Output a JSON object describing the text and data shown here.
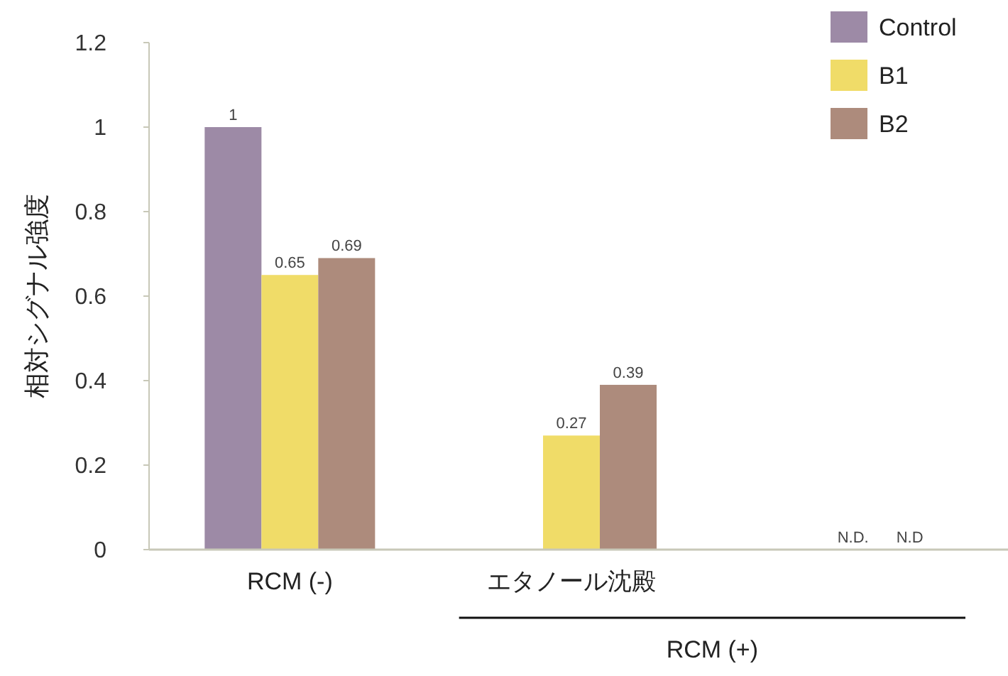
{
  "chart_data": {
    "type": "bar",
    "ylabel": "相対シグナル強度",
    "categories": [
      "RCM (-)",
      "エタノール沈殿",
      null
    ],
    "series": [
      {
        "name": "Control",
        "color": "#9d8aa6",
        "values": [
          1,
          null,
          null
        ],
        "value_labels": [
          "1",
          null,
          null
        ]
      },
      {
        "name": "B1",
        "color": "#f0dc68",
        "values": [
          0.65,
          0.27,
          null
        ],
        "value_labels": [
          "0.65",
          "0.27",
          "N.D."
        ]
      },
      {
        "name": "B2",
        "color": "#ad8b7c",
        "values": [
          0.69,
          0.39,
          null
        ],
        "value_labels": [
          "0.69",
          "0.39",
          "N.D"
        ]
      }
    ],
    "ylim": [
      0,
      1.2
    ],
    "yticks": [
      0,
      {
        "value": 0.2,
        "label": "0.2"
      },
      {
        "value": 0.4,
        "label": "0.4"
      },
      {
        "value": 0.6,
        "label": "0.6"
      },
      {
        "value": 0.8,
        "label": "0.8"
      },
      1,
      {
        "value": 1.2,
        "label": "1.2"
      }
    ],
    "grid": false,
    "legend": "top right",
    "annotations": [
      "RCM (+)"
    ]
  }
}
